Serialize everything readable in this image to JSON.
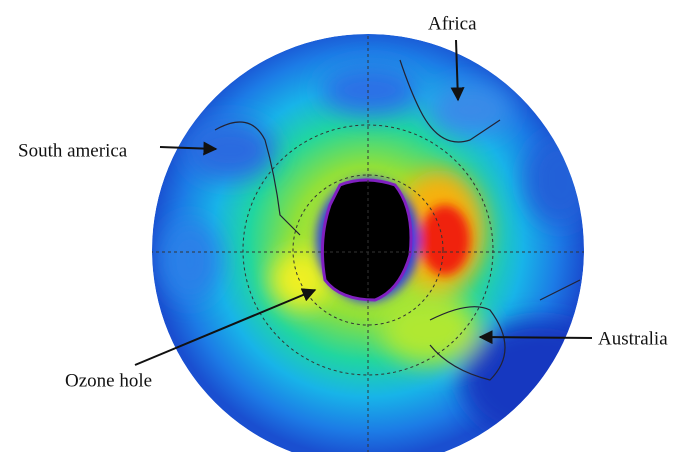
{
  "annotations": [
    "Africa",
    "South america",
    "Australia",
    "Ozone hole"
  ]
}
